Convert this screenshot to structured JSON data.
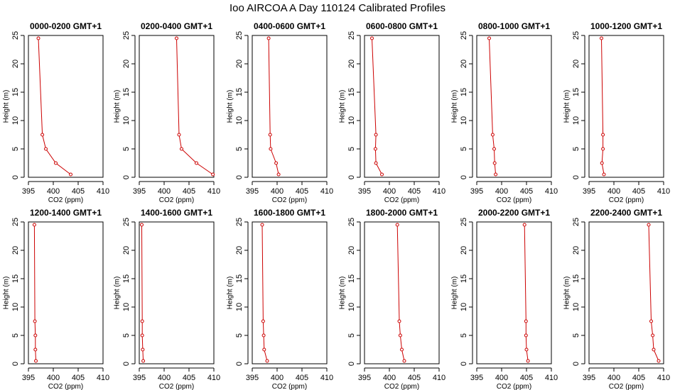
{
  "figure": {
    "title": "Ioo AIRCOA A  Day 110124  Calibrated Profiles"
  },
  "colors": {
    "series": "#cc0000",
    "axis": "#000000"
  },
  "chart_data": {
    "type": "line",
    "xlabel": "CO2 (ppm)",
    "ylabel": "Height (m)",
    "xlim": [
      395,
      410
    ],
    "ylim": [
      0,
      25
    ],
    "xticks": [
      "395",
      "400",
      "405",
      "410"
    ],
    "yticks": [
      "0",
      "5",
      "10",
      "15",
      "20",
      "25"
    ],
    "heights": [
      0.5,
      2.5,
      5,
      7.5,
      24.5
    ],
    "panels": [
      {
        "title": "0000-0200 GMT+1",
        "co2": [
          403.5,
          400.5,
          398.5,
          397.8,
          397.0
        ]
      },
      {
        "title": "0200-0400 GMT+1",
        "co2": [
          409.8,
          406.5,
          403.5,
          403.0,
          402.5
        ]
      },
      {
        "title": "0400-0600 GMT+1",
        "co2": [
          400.3,
          399.8,
          398.7,
          398.6,
          398.3
        ]
      },
      {
        "title": "0600-0800 GMT+1",
        "co2": [
          398.5,
          397.3,
          397.2,
          397.3,
          396.5
        ]
      },
      {
        "title": "0800-1000 GMT+1",
        "co2": [
          398.8,
          398.6,
          398.5,
          398.2,
          397.5
        ]
      },
      {
        "title": "1000-1200 GMT+1",
        "co2": [
          398.0,
          397.6,
          397.8,
          397.8,
          397.5
        ]
      },
      {
        "title": "1200-1400 GMT+1",
        "co2": [
          396.5,
          396.4,
          396.4,
          396.3,
          396.2
        ]
      },
      {
        "title": "1400-1600 GMT+1",
        "co2": [
          395.8,
          395.7,
          395.6,
          395.6,
          395.5
        ]
      },
      {
        "title": "1600-1800 GMT+1",
        "co2": [
          398.0,
          397.4,
          397.3,
          397.2,
          397.0
        ]
      },
      {
        "title": "1800-2000 GMT+1",
        "co2": [
          403.0,
          402.5,
          402.2,
          402.0,
          401.6
        ]
      },
      {
        "title": "2000-2200 GMT+1",
        "co2": [
          405.3,
          405.0,
          404.9,
          404.9,
          404.6
        ]
      },
      {
        "title": "2200-2400 GMT+1",
        "co2": [
          409.0,
          408.0,
          407.8,
          407.5,
          407.0
        ]
      }
    ]
  }
}
